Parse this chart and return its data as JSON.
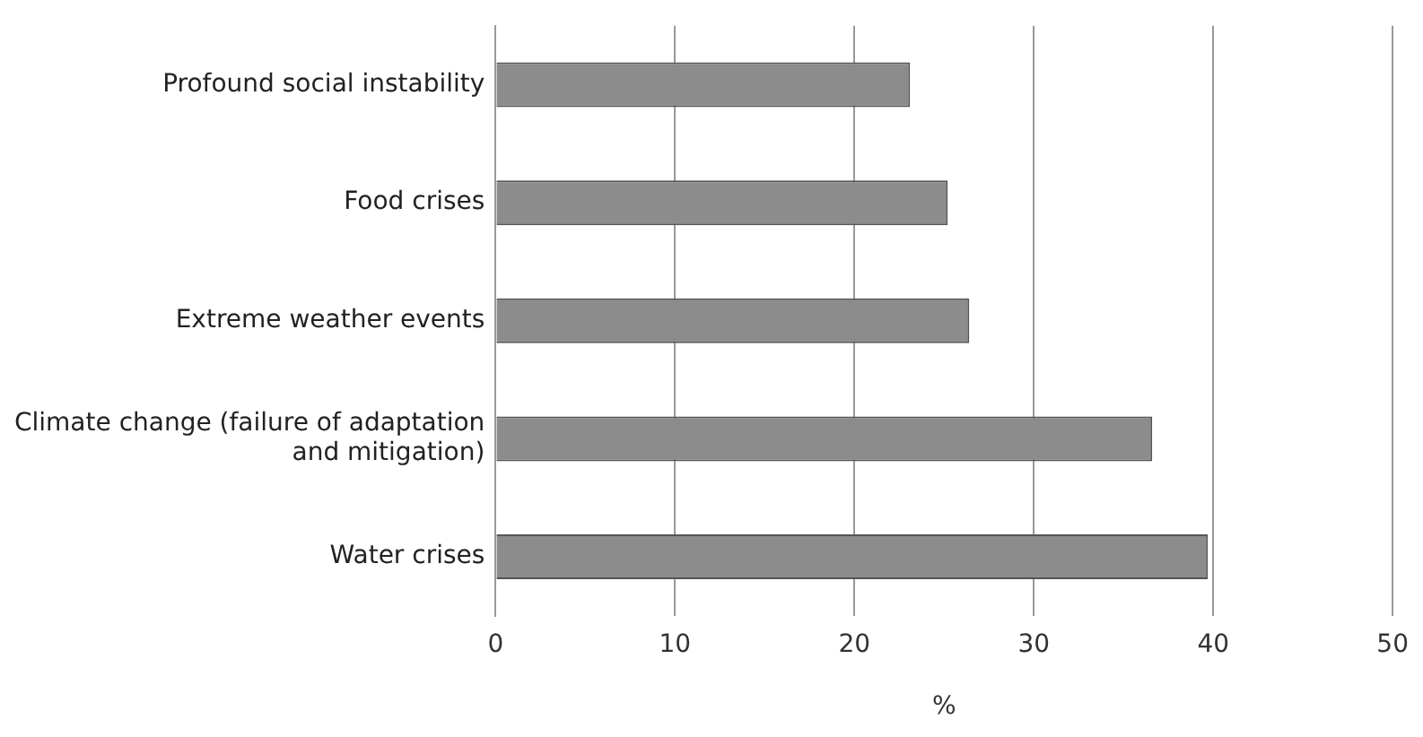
{
  "chart_data": {
    "type": "bar",
    "orientation": "horizontal",
    "xlabel": "%",
    "categories": [
      "Profound social instability",
      "Food crises",
      "Extreme weather events",
      "Climate change (failure of adaptation and mitigation)",
      "Water crises"
    ],
    "values": [
      23.1,
      25.2,
      26.4,
      36.6,
      39.7
    ],
    "color": "#8c8c8c",
    "xlim": [
      0,
      50
    ],
    "xticks": [
      0,
      10,
      20,
      30,
      40,
      50
    ],
    "grid": "x",
    "legend": false
  }
}
